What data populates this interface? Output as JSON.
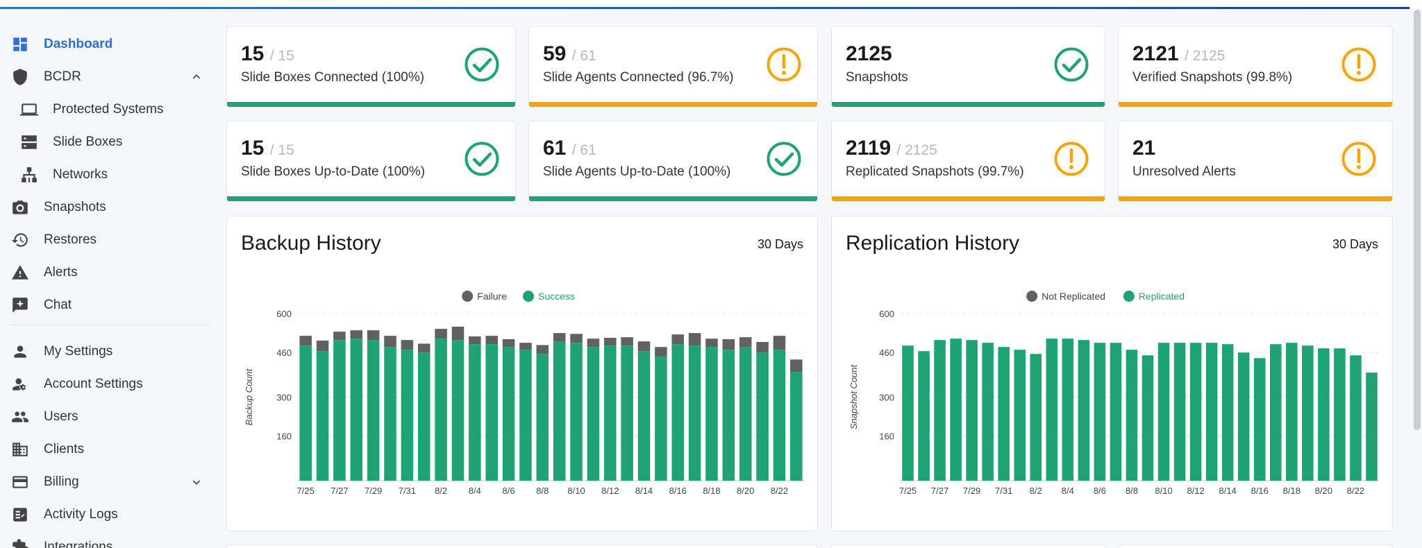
{
  "sidebar": {
    "items": [
      {
        "label": "Dashboard",
        "icon": "dashboard-icon",
        "active": true
      },
      {
        "label": "BCDR",
        "icon": "shield-icon"
      },
      {
        "label": "Protected Systems",
        "icon": "laptop-icon"
      },
      {
        "label": "Slide Boxes",
        "icon": "server-icon"
      },
      {
        "label": "Networks",
        "icon": "network-icon"
      },
      {
        "label": "Snapshots",
        "icon": "camera-icon"
      },
      {
        "label": "Restores",
        "icon": "history-icon"
      },
      {
        "label": "Alerts",
        "icon": "warning-icon"
      },
      {
        "label": "Chat",
        "icon": "chat-icon"
      },
      {
        "label": "My Settings",
        "icon": "person-icon"
      },
      {
        "label": "Account Settings",
        "icon": "person-gear-icon"
      },
      {
        "label": "Users",
        "icon": "users-icon"
      },
      {
        "label": "Clients",
        "icon": "building-icon"
      },
      {
        "label": "Billing",
        "icon": "billing-icon"
      },
      {
        "label": "Activity Logs",
        "icon": "activity-log-icon"
      },
      {
        "label": "Integrations",
        "icon": "puzzle-icon"
      }
    ]
  },
  "colors": {
    "green": "#1fa374",
    "amber": "#f5a50b",
    "failure": "#616161",
    "accent": "#2f6fd6"
  },
  "stats": [
    {
      "value": "15",
      "of": "/ 15",
      "label": "Slide Boxes Connected (100%)",
      "status": "ok"
    },
    {
      "value": "59",
      "of": "/ 61",
      "label": "Slide Agents Connected (96.7%)",
      "status": "warn"
    },
    {
      "value": "2125",
      "of": "",
      "label": "Snapshots",
      "status": "ok"
    },
    {
      "value": "2121",
      "of": "/ 2125",
      "label": "Verified Snapshots (99.8%)",
      "status": "warn"
    },
    {
      "value": "15",
      "of": "/ 15",
      "label": "Slide Boxes Up-to-Date (100%)",
      "status": "ok"
    },
    {
      "value": "61",
      "of": "/ 61",
      "label": "Slide Agents Up-to-Date (100%)",
      "status": "ok"
    },
    {
      "value": "2119",
      "of": "/ 2125",
      "label": "Replicated Snapshots (99.7%)",
      "status": "warn"
    },
    {
      "value": "21",
      "of": "",
      "label": "Unresolved Alerts",
      "status": "warn"
    }
  ],
  "backup": {
    "title": "Backup History",
    "range": "30 Days",
    "chart_data": {
      "type": "bar",
      "stacked": true,
      "ylabel": "Backup Count",
      "yticks": [
        "160",
        "300",
        "460",
        "600"
      ],
      "ylim": [
        0,
        600
      ],
      "xticks": [
        "7/25",
        "7/27",
        "7/29",
        "7/31",
        "8/2",
        "8/4",
        "8/6",
        "8/8",
        "8/10",
        "8/12",
        "8/14",
        "8/16",
        "8/18",
        "8/20",
        "8/22"
      ],
      "series": [
        {
          "name": "Failure",
          "values": [
            35,
            38,
            30,
            30,
            35,
            40,
            35,
            32,
            35,
            48,
            28,
            30,
            28,
            25,
            32,
            30,
            32,
            30,
            28,
            30,
            35,
            35,
            35,
            45,
            30,
            38,
            35,
            38,
            50,
            45
          ]
        },
        {
          "name": "Success",
          "values": [
            485,
            465,
            505,
            510,
            505,
            480,
            470,
            460,
            510,
            505,
            490,
            490,
            480,
            470,
            455,
            500,
            495,
            480,
            485,
            485,
            465,
            445,
            490,
            485,
            480,
            470,
            480,
            460,
            470,
            390
          ]
        }
      ]
    }
  },
  "replication": {
    "title": "Replication History",
    "range": "30 Days",
    "chart_data": {
      "type": "bar",
      "stacked": true,
      "ylabel": "Snapshot Count",
      "yticks": [
        "160",
        "300",
        "460",
        "600"
      ],
      "ylim": [
        0,
        600
      ],
      "xticks": [
        "7/25",
        "7/27",
        "7/29",
        "7/31",
        "8/2",
        "8/4",
        "8/6",
        "8/8",
        "8/10",
        "8/12",
        "8/14",
        "8/16",
        "8/18",
        "8/20",
        "8/22"
      ],
      "series": [
        {
          "name": "Not Replicated",
          "values": [
            0,
            0,
            0,
            0,
            0,
            0,
            0,
            0,
            0,
            0,
            0,
            0,
            0,
            0,
            0,
            0,
            0,
            0,
            0,
            0,
            0,
            0,
            0,
            0,
            0,
            0,
            0,
            0,
            0,
            3
          ]
        },
        {
          "name": "Replicated",
          "values": [
            485,
            465,
            505,
            510,
            505,
            495,
            480,
            470,
            455,
            510,
            510,
            505,
            495,
            495,
            470,
            450,
            495,
            495,
            495,
            495,
            490,
            460,
            440,
            490,
            495,
            485,
            475,
            475,
            450,
            385
          ]
        }
      ]
    }
  }
}
